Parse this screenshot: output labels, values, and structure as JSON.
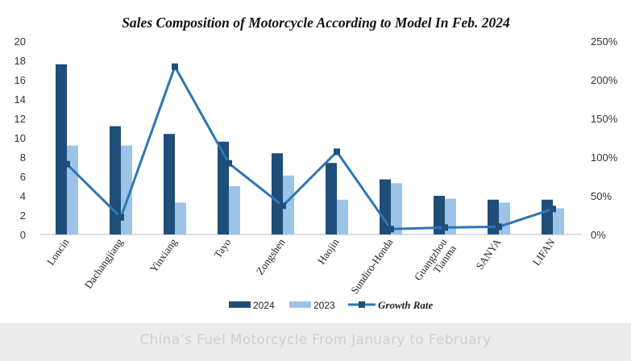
{
  "chart_data": {
    "type": "bar",
    "title": "Sales Composition  of  Motorcycle According to Model In Feb. 2024",
    "categories": [
      "Loncin",
      "Dachangjiang",
      "Yinxiang",
      "Tayo",
      "Zongshen",
      "Haojin",
      "Sundiro-Honda",
      "Guangzhou Tianma",
      "SANYA",
      "LIFAN"
    ],
    "series": [
      {
        "name": "2024",
        "type": "bar",
        "axis": "left",
        "color": "#1f4e79",
        "values": [
          17.6,
          11.2,
          10.4,
          9.6,
          8.4,
          7.4,
          5.7,
          4.0,
          3.6,
          3.6
        ]
      },
      {
        "name": "2023",
        "type": "bar",
        "axis": "left",
        "color": "#9dc3e6",
        "values": [
          9.2,
          9.2,
          3.3,
          5.0,
          6.1,
          3.6,
          5.3,
          3.7,
          3.3,
          2.7
        ]
      },
      {
        "name": "Growth Rate",
        "type": "line",
        "axis": "right",
        "color": "#2e75b6",
        "values": [
          91,
          22,
          217,
          92,
          37,
          107,
          7,
          9,
          10,
          33
        ]
      }
    ],
    "y_left": {
      "ylim": [
        0,
        20
      ],
      "ticks": [
        "20",
        "18",
        "16",
        "14",
        "12",
        "10",
        "8",
        "6",
        "4",
        "2",
        "0"
      ]
    },
    "y_right": {
      "ylim": [
        0,
        250
      ],
      "unit": "%",
      "ticks": [
        "250%",
        "200%",
        "150%",
        "100%",
        "50%",
        "0%"
      ]
    },
    "grid": false,
    "legend_position": "bottom"
  },
  "footer": {
    "caption": "China’s Fuel Motorcycle From January to February"
  }
}
